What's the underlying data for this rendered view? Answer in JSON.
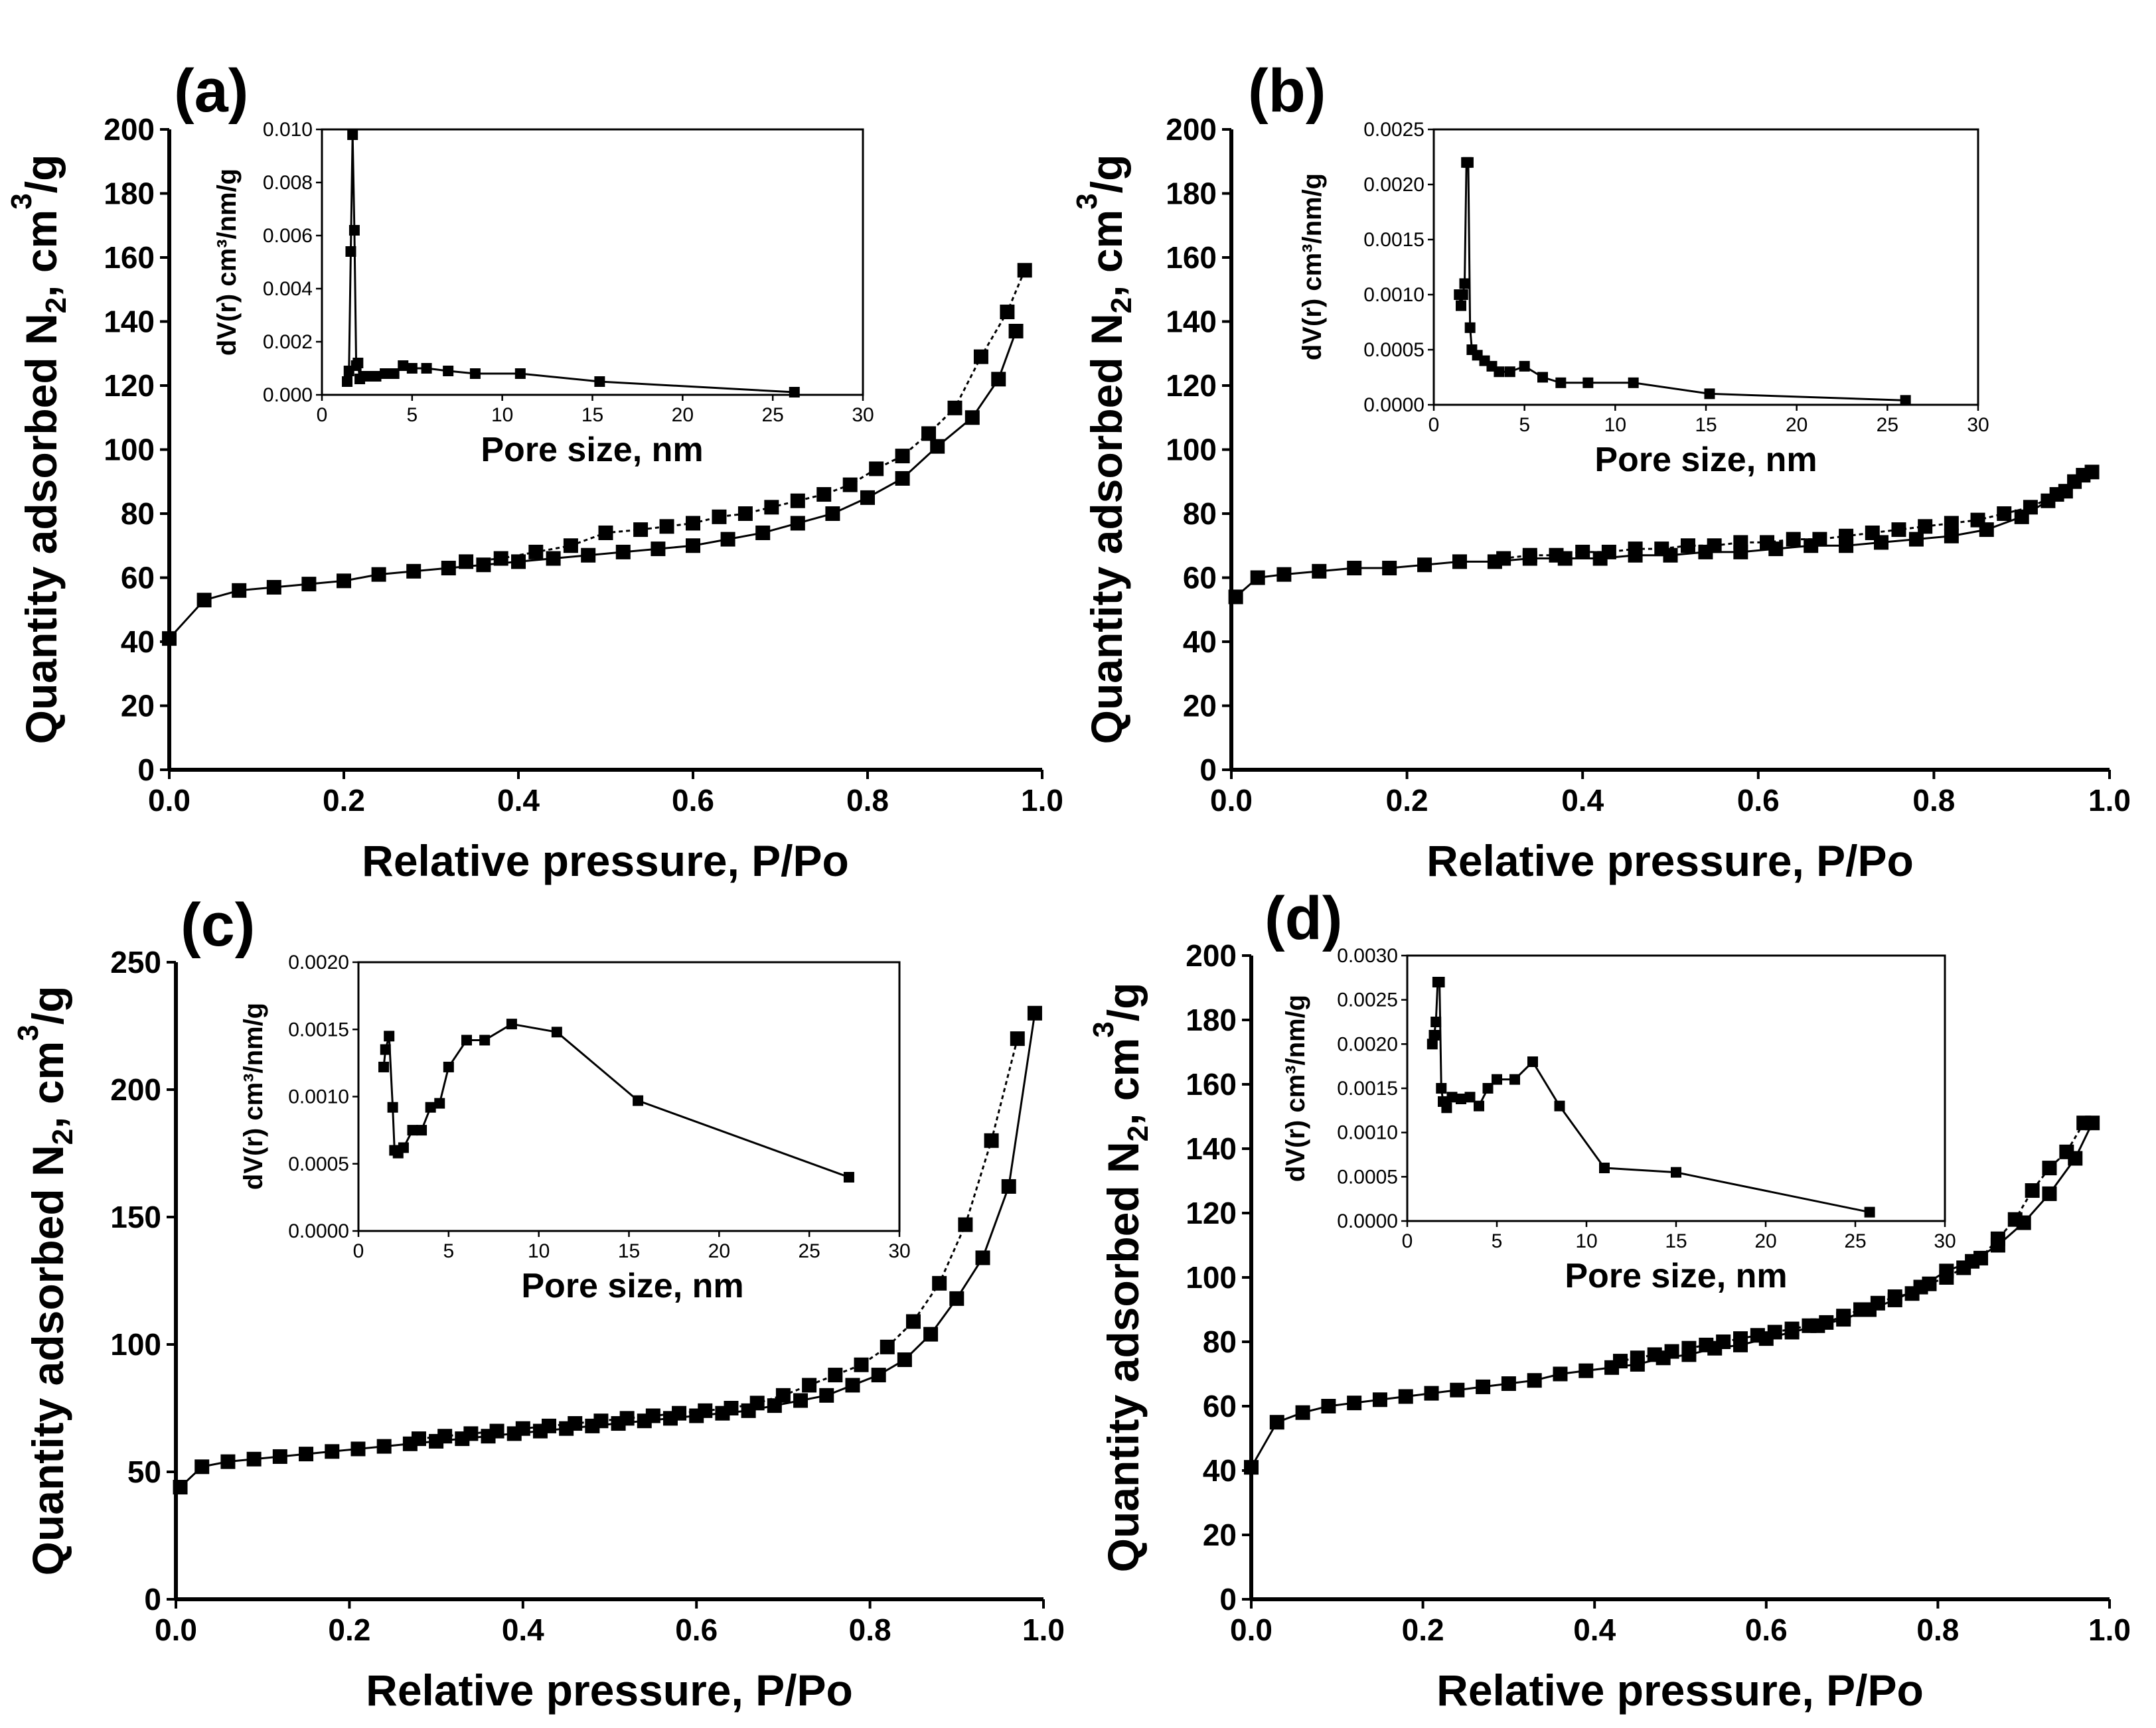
{
  "chart_data": [
    {
      "label": "(a)",
      "type": "scatter",
      "xlabel": "Relative pressure, P/Po",
      "ylabel": [
        "Quantity adsorbed N",
        "2",
        ", cm",
        "3",
        "/g"
      ],
      "xlim": [
        0,
        1.0
      ],
      "ylim": [
        0,
        200
      ],
      "xticks": [
        "0.0",
        "0.2",
        "0.4",
        "0.6",
        "0.8",
        "1.0"
      ],
      "yticks": [
        "0",
        "20",
        "40",
        "60",
        "80",
        "100",
        "120",
        "140",
        "160",
        "180",
        "200"
      ],
      "series": [
        {
          "x": [
            0.0,
            0.04,
            0.08,
            0.12,
            0.16,
            0.2,
            0.24,
            0.28,
            0.32,
            0.36,
            0.4,
            0.44,
            0.48,
            0.52,
            0.56,
            0.6,
            0.64,
            0.68,
            0.72,
            0.76,
            0.8,
            0.84,
            0.88,
            0.92,
            0.95,
            0.97
          ],
          "y": [
            41,
            53,
            56,
            57,
            58,
            59,
            61,
            62,
            63,
            64,
            65,
            66,
            67,
            68,
            69,
            70,
            72,
            74,
            77,
            80,
            85,
            91,
            101,
            110,
            122,
            137
          ]
        },
        {
          "x": [
            0.98,
            0.96,
            0.93,
            0.9,
            0.87,
            0.84,
            0.81,
            0.78,
            0.75,
            0.72,
            0.69,
            0.66,
            0.63,
            0.6,
            0.57,
            0.54,
            0.5,
            0.46,
            0.42,
            0.38,
            0.34
          ],
          "y": [
            156,
            143,
            129,
            113,
            105,
            98,
            94,
            89,
            86,
            84,
            82,
            80,
            79,
            77,
            76,
            75,
            74,
            70,
            68,
            66,
            65
          ]
        }
      ],
      "inset": {
        "xlabel": "Pore size, nm",
        "ylabel": "dV(r) cm³/nm/g",
        "xlim": [
          0,
          30
        ],
        "ylim": [
          0,
          0.01
        ],
        "xticks": [
          "0",
          "5",
          "10",
          "15",
          "20",
          "25",
          "30"
        ],
        "yticks": [
          "0.000",
          "0.002",
          "0.004",
          "0.006",
          "0.008",
          "0.010"
        ],
        "x": [
          1.4,
          1.5,
          1.6,
          1.7,
          1.8,
          1.9,
          2.0,
          2.1,
          2.3,
          2.6,
          3.0,
          3.5,
          4.0,
          4.5,
          5.0,
          5.8,
          7.0,
          8.5,
          11.0,
          15.4,
          26.2
        ],
        "y": [
          0.0005,
          0.0009,
          0.0054,
          0.0098,
          0.0062,
          0.0011,
          0.0012,
          0.0006,
          0.0007,
          0.0007,
          0.0007,
          0.0008,
          0.0008,
          0.0011,
          0.001,
          0.001,
          0.0009,
          0.0008,
          0.0008,
          0.0005,
          0.0001
        ]
      }
    },
    {
      "label": "(b)",
      "type": "scatter",
      "xlabel": "Relative pressure, P/Po",
      "ylabel": [
        "Quantity adsorbed N",
        "2",
        ", cm",
        "3",
        "/g"
      ],
      "xlim": [
        0,
        1.0
      ],
      "ylim": [
        0,
        200
      ],
      "xticks": [
        "0.0",
        "0.2",
        "0.4",
        "0.6",
        "0.8",
        "1.0"
      ],
      "yticks": [
        "0",
        "20",
        "40",
        "60",
        "80",
        "100",
        "120",
        "140",
        "160",
        "180",
        "200"
      ],
      "series": [
        {
          "x": [
            0.005,
            0.03,
            0.06,
            0.1,
            0.14,
            0.18,
            0.22,
            0.26,
            0.3,
            0.34,
            0.38,
            0.42,
            0.46,
            0.5,
            0.54,
            0.58,
            0.62,
            0.66,
            0.7,
            0.74,
            0.78,
            0.82,
            0.86,
            0.9,
            0.93,
            0.95,
            0.97
          ],
          "y": [
            54,
            60,
            61,
            62,
            63,
            63,
            64,
            65,
            65,
            66,
            66,
            66,
            67,
            67,
            68,
            68,
            69,
            70,
            70,
            71,
            72,
            73,
            75,
            79,
            84,
            87,
            92
          ]
        },
        {
          "x": [
            0.98,
            0.96,
            0.94,
            0.91,
            0.88,
            0.85,
            0.82,
            0.79,
            0.76,
            0.73,
            0.7,
            0.67,
            0.64,
            0.61,
            0.58,
            0.55,
            0.52,
            0.49,
            0.46,
            0.43,
            0.4,
            0.37,
            0.34,
            0.31
          ],
          "y": [
            93,
            90,
            86,
            82,
            80,
            78,
            77,
            76,
            75,
            74,
            73,
            72,
            72,
            71,
            71,
            70,
            70,
            69,
            69,
            68,
            68,
            67,
            67,
            66
          ]
        }
      ],
      "inset": {
        "xlabel": "Pore size, nm",
        "ylabel": "dV(r) cm³/nm/g",
        "xlim": [
          0,
          30
        ],
        "ylim": [
          0,
          0.0025
        ],
        "xticks": [
          "0",
          "5",
          "10",
          "15",
          "20",
          "25",
          "30"
        ],
        "yticks": [
          "0.0000",
          "0.0005",
          "0.0010",
          "0.0015",
          "0.0020",
          "0.0025"
        ],
        "x": [
          1.4,
          1.5,
          1.6,
          1.7,
          1.8,
          1.9,
          2.0,
          2.1,
          2.4,
          2.8,
          3.2,
          3.6,
          4.2,
          5.0,
          6.0,
          7.0,
          8.5,
          11.0,
          15.2,
          26.0
        ],
        "y": [
          0.001,
          0.0009,
          0.001,
          0.0011,
          0.0022,
          0.0022,
          0.0007,
          0.0005,
          0.00045,
          0.0004,
          0.00035,
          0.0003,
          0.0003,
          0.00035,
          0.00025,
          0.0002,
          0.0002,
          0.0002,
          0.0001,
          4e-05
        ]
      }
    },
    {
      "label": "(c)",
      "type": "scatter",
      "xlabel": "Relative pressure, P/Po",
      "ylabel": [
        "Quantity adsorbed N",
        "2",
        ", cm",
        "3",
        "/g"
      ],
      "xlim": [
        0,
        1.0
      ],
      "ylim": [
        0,
        250
      ],
      "xticks": [
        "0.0",
        "0.2",
        "0.4",
        "0.6",
        "0.8",
        "1.0"
      ],
      "yticks": [
        "0",
        "50",
        "100",
        "150",
        "200",
        "250"
      ],
      "series": [
        {
          "x": [
            0.005,
            0.03,
            0.06,
            0.09,
            0.12,
            0.15,
            0.18,
            0.21,
            0.24,
            0.27,
            0.3,
            0.33,
            0.36,
            0.39,
            0.42,
            0.45,
            0.48,
            0.51,
            0.54,
            0.57,
            0.6,
            0.63,
            0.66,
            0.69,
            0.72,
            0.75,
            0.78,
            0.81,
            0.84,
            0.87,
            0.9,
            0.93,
            0.96,
            0.99
          ],
          "y": [
            44,
            52,
            54,
            55,
            56,
            57,
            58,
            59,
            60,
            61,
            62,
            63,
            64,
            65,
            66,
            67,
            68,
            69,
            70,
            71,
            72,
            73,
            74,
            76,
            78,
            80,
            84,
            88,
            94,
            104,
            118,
            134,
            162,
            230
          ]
        },
        {
          "x": [
            0.97,
            0.94,
            0.91,
            0.88,
            0.85,
            0.82,
            0.79,
            0.76,
            0.73,
            0.7,
            0.67,
            0.64,
            0.61,
            0.58,
            0.55,
            0.52,
            0.49,
            0.46,
            0.43,
            0.4,
            0.37,
            0.34,
            0.31,
            0.28
          ],
          "y": [
            220,
            180,
            147,
            124,
            109,
            99,
            92,
            88,
            84,
            80,
            77,
            75,
            74,
            73,
            72,
            71,
            70,
            69,
            68,
            67,
            66,
            65,
            64,
            63
          ]
        }
      ],
      "inset": {
        "xlabel": "Pore size, nm",
        "ylabel": "dV(r) cm³/nm/g",
        "xlim": [
          0,
          30
        ],
        "ylim": [
          0,
          0.002
        ],
        "xticks": [
          "0",
          "5",
          "10",
          "15",
          "20",
          "25",
          "30"
        ],
        "yticks": [
          "0.0000",
          "0.0005",
          "0.0010",
          "0.0015",
          "0.0020"
        ],
        "x": [
          1.4,
          1.5,
          1.7,
          1.9,
          2.0,
          2.2,
          2.5,
          3.0,
          3.5,
          4.0,
          4.5,
          5.0,
          6.0,
          7.0,
          8.5,
          11.0,
          15.5,
          27.2
        ],
        "y": [
          0.00122,
          0.00135,
          0.00145,
          0.00092,
          0.0006,
          0.00058,
          0.00062,
          0.00075,
          0.00075,
          0.00092,
          0.00095,
          0.00122,
          0.00142,
          0.00142,
          0.00154,
          0.00148,
          0.00097,
          0.0004
        ]
      }
    },
    {
      "label": "(d)",
      "type": "scatter",
      "xlabel": "Relative pressure, P/Po",
      "ylabel": [
        "Quantity adsorbed N",
        "2",
        ", cm",
        "3",
        "/g"
      ],
      "xlim": [
        0,
        1.0
      ],
      "ylim": [
        0,
        200
      ],
      "xticks": [
        "0.0",
        "0.2",
        "0.4",
        "0.6",
        "0.8",
        "1.0"
      ],
      "yticks": [
        "0",
        "20",
        "40",
        "60",
        "80",
        "100",
        "120",
        "140",
        "160",
        "180",
        "200"
      ],
      "series": [
        {
          "x": [
            0.0,
            0.03,
            0.06,
            0.09,
            0.12,
            0.15,
            0.18,
            0.21,
            0.24,
            0.27,
            0.3,
            0.33,
            0.36,
            0.39,
            0.42,
            0.45,
            0.48,
            0.51,
            0.54,
            0.57,
            0.6,
            0.63,
            0.66,
            0.69,
            0.72,
            0.75,
            0.78,
            0.81,
            0.84,
            0.87,
            0.9,
            0.93,
            0.96,
            0.98
          ],
          "y": [
            41,
            55,
            58,
            60,
            61,
            62,
            63,
            64,
            65,
            66,
            67,
            68,
            70,
            71,
            72,
            73,
            75,
            76,
            78,
            79,
            81,
            83,
            85,
            87,
            90,
            93,
            97,
            102,
            105,
            110,
            117,
            126,
            137,
            148
          ]
        },
        {
          "x": [
            0.97,
            0.95,
            0.93,
            0.91,
            0.89,
            0.87,
            0.85,
            0.83,
            0.81,
            0.79,
            0.77,
            0.75,
            0.73,
            0.71,
            0.69,
            0.67,
            0.65,
            0.63,
            0.61,
            0.59,
            0.57,
            0.55,
            0.53,
            0.51,
            0.49,
            0.47,
            0.45,
            0.43
          ],
          "y": [
            148,
            139,
            134,
            127,
            118,
            112,
            106,
            103,
            100,
            98,
            95,
            94,
            92,
            90,
            88,
            86,
            85,
            84,
            83,
            82,
            81,
            80,
            79,
            78,
            77,
            76,
            75,
            74
          ]
        }
      ],
      "inset": {
        "xlabel": "Pore size, nm",
        "ylabel": "dV(r) cm³/nm/g",
        "xlim": [
          0,
          30
        ],
        "ylim": [
          0,
          0.003
        ],
        "xticks": [
          "0",
          "5",
          "10",
          "15",
          "20",
          "25",
          "30"
        ],
        "yticks": [
          "0.0000",
          "0.0005",
          "0.0010",
          "0.0015",
          "0.0020",
          "0.0025",
          "0.0030"
        ],
        "x": [
          1.4,
          1.5,
          1.6,
          1.7,
          1.8,
          1.9,
          2.0,
          2.2,
          2.5,
          3.0,
          3.5,
          4.0,
          4.5,
          5.0,
          6.0,
          7.0,
          8.5,
          11.0,
          15.0,
          25.8
        ],
        "y": [
          0.002,
          0.0021,
          0.00225,
          0.0027,
          0.0027,
          0.0015,
          0.00135,
          0.00128,
          0.0014,
          0.00138,
          0.0014,
          0.0013,
          0.0015,
          0.0016,
          0.0016,
          0.0018,
          0.0013,
          0.0006,
          0.00055,
          0.0001
        ]
      }
    }
  ]
}
